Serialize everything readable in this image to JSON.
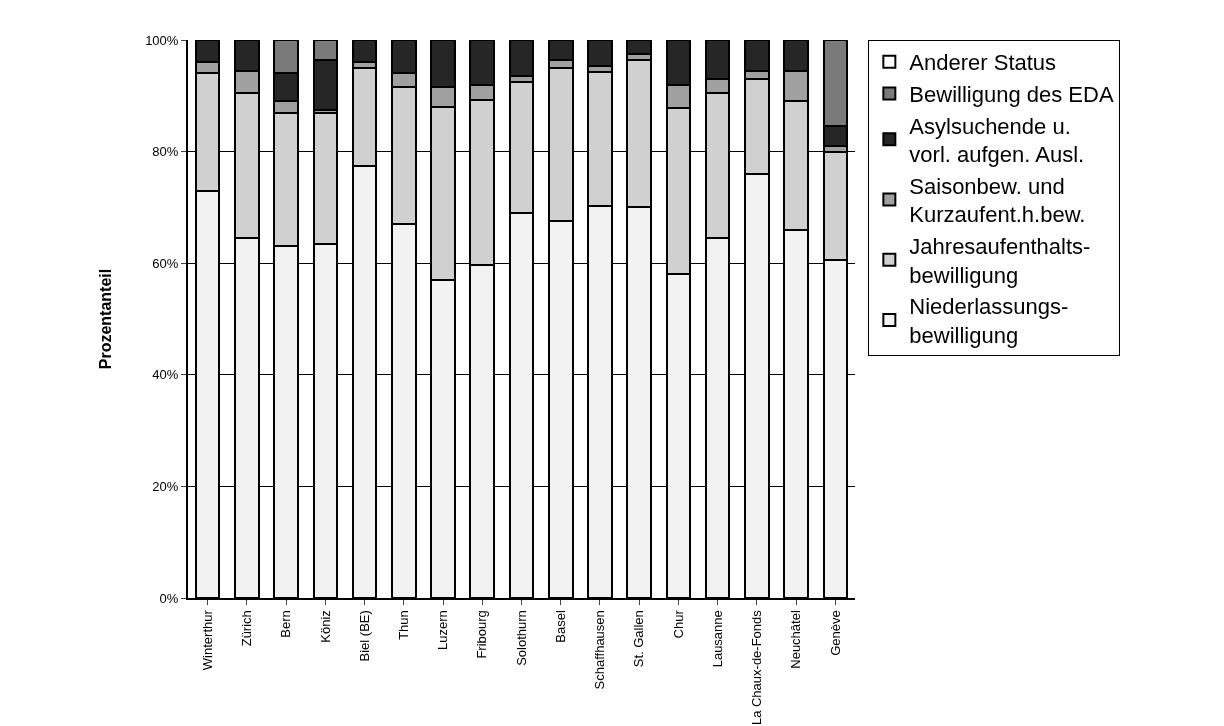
{
  "chart_data": {
    "type": "bar",
    "stacked": true,
    "ylabel": "Prozentanteil",
    "categories": [
      "Winterthur",
      "Zürich",
      "Bern",
      "Köniz",
      "Biel (BE)",
      "Thun",
      "Luzern",
      "Fribourg",
      "Solothurn",
      "Basel",
      "Schaffhausen",
      "St. Gallen",
      "Chur",
      "Lausanne",
      "La Chaux-de-Fonds",
      "Neuchâtel",
      "Genève"
    ],
    "series": [
      {
        "name": "Niederlassungs-bewilligung",
        "color": "#f2f2f2",
        "values": [
          73,
          64.5,
          63,
          63.5,
          77.5,
          67,
          57,
          59.7,
          69,
          67.5,
          70.3,
          70,
          58,
          64.5,
          76,
          66,
          60.5
        ]
      },
      {
        "name": "Jahresaufenthalts-bewilligung",
        "color": "#d0d0d0",
        "values": [
          21,
          26,
          24,
          23.5,
          17.5,
          24.5,
          31,
          29.5,
          23.5,
          27.5,
          23.9,
          26.5,
          29.8,
          26,
          17,
          23,
          19.5
        ]
      },
      {
        "name": "Saisonbew. und Kurzaufent.h.bew.",
        "color": "#a0a0a0",
        "values": [
          2,
          4,
          2,
          0.5,
          1,
          2.5,
          3.5,
          2.8,
          1,
          1.5,
          1.1,
          1,
          4.2,
          2.5,
          1.5,
          5.5,
          1
        ]
      },
      {
        "name": "Asylsuchende u. vorl. aufgen. Ausl.",
        "color": "#262626",
        "values": [
          4,
          5.5,
          5,
          9,
          4,
          6,
          8.5,
          8,
          6.5,
          3.5,
          4.7,
          2.5,
          8,
          7,
          5.5,
          5.5,
          3.5
        ]
      },
      {
        "name": "Bewilligung des EDA",
        "color": "#7a7a7a",
        "values": [
          0,
          0,
          6,
          3.5,
          0,
          0,
          0,
          0,
          0,
          0,
          0,
          0,
          0,
          0,
          0,
          0,
          15.5
        ]
      },
      {
        "name": "Anderer Status",
        "color": "#ffffff",
        "values": [
          0,
          0,
          0,
          0,
          0,
          0,
          0,
          0,
          0,
          0,
          0,
          0,
          0,
          0,
          0,
          0,
          0
        ]
      }
    ],
    "ylim": [
      0,
      100
    ],
    "yticks": [
      {
        "value": 0,
        "label": "0%"
      },
      {
        "value": 20,
        "label": "20%"
      },
      {
        "value": 40,
        "label": "40%"
      },
      {
        "value": 60,
        "label": "60%"
      },
      {
        "value": 80,
        "label": "80%"
      },
      {
        "value": 100,
        "label": "100%"
      }
    ],
    "grid": "y",
    "legend": "right"
  }
}
